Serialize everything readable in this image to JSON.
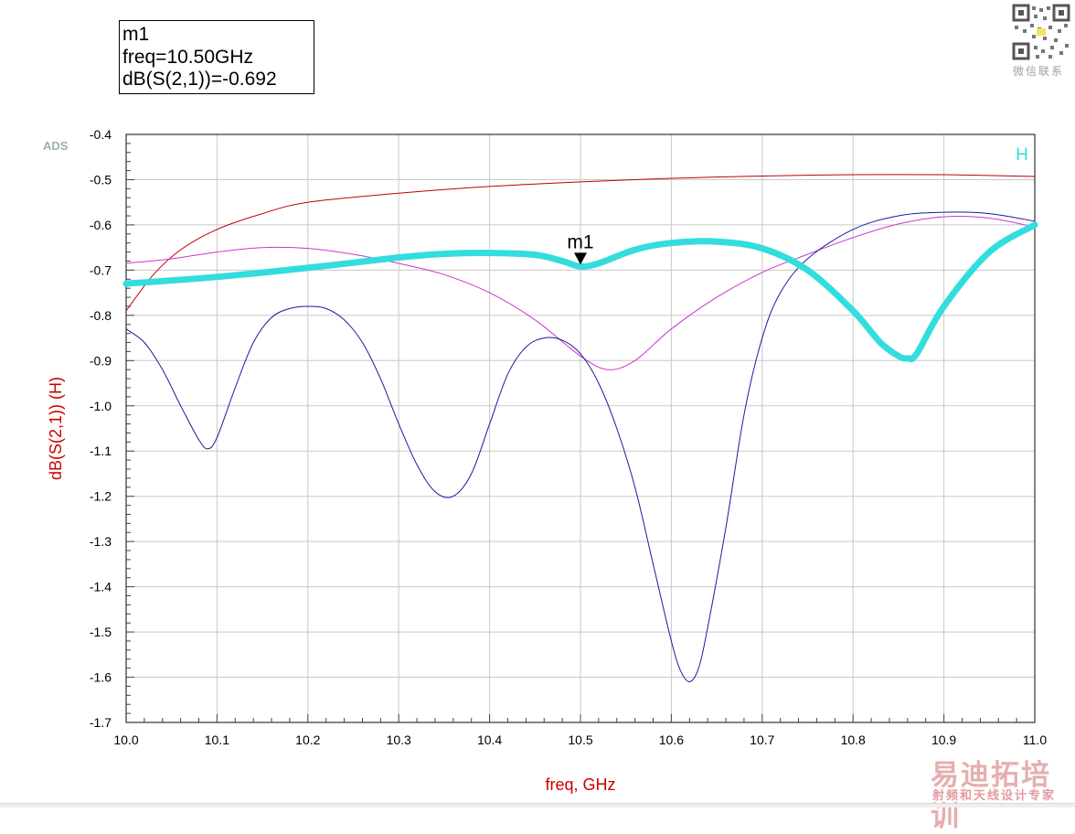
{
  "marker_readout": {
    "name": "m1",
    "freq": "freq=10.50GHz",
    "value": "dB(S(2,1))=-0.692"
  },
  "watermarks": {
    "ads": "ADS",
    "qr_caption": "微信联系",
    "brand": "易迪拓培训",
    "brand_sub": "射频和天线设计专家"
  },
  "chart_data": {
    "type": "line",
    "xlabel": "freq, GHz",
    "ylabel": "dB(S(2,1))  (H)",
    "xlim": [
      10.0,
      11.0
    ],
    "ylim": [
      -1.7,
      -0.4
    ],
    "x_ticks": [
      10.0,
      10.1,
      10.2,
      10.3,
      10.4,
      10.5,
      10.6,
      10.7,
      10.8,
      10.9,
      11.0
    ],
    "x_tick_labels": [
      "10.0",
      "10.1",
      "10.2",
      "10.3",
      "10.4",
      "10.5",
      "10.6",
      "10.7",
      "10.8",
      "10.9",
      "11.0"
    ],
    "y_ticks": [
      -0.4,
      -0.5,
      -0.6,
      -0.7,
      -0.8,
      -0.9,
      -1.0,
      -1.1,
      -1.2,
      -1.3,
      -1.4,
      -1.5,
      -1.6,
      -1.7
    ],
    "y_tick_labels": [
      "-0.4",
      "-0.5",
      "-0.6",
      "-0.7",
      "-0.8",
      "-0.9",
      "-1.0",
      "-1.1",
      "-1.2",
      "-1.3",
      "-1.4",
      "-1.5",
      "-1.6",
      "-1.7"
    ],
    "grid": true,
    "series": [
      {
        "color": "#c00000",
        "width": 1,
        "x": [
          10.0,
          10.03,
          10.06,
          10.1,
          10.15,
          10.2,
          10.3,
          10.4,
          10.5,
          10.6,
          10.7,
          10.8,
          10.9,
          11.0
        ],
        "y": [
          -0.79,
          -0.71,
          -0.655,
          -0.61,
          -0.575,
          -0.55,
          -0.53,
          -0.515,
          -0.505,
          -0.497,
          -0.492,
          -0.489,
          -0.489,
          -0.493
        ]
      },
      {
        "color": "#cc33cc",
        "width": 1,
        "x": [
          10.0,
          10.05,
          10.1,
          10.15,
          10.2,
          10.25,
          10.3,
          10.35,
          10.4,
          10.45,
          10.5,
          10.53,
          10.56,
          10.6,
          10.65,
          10.7,
          10.75,
          10.8,
          10.85,
          10.9,
          10.95,
          11.0
        ],
        "y": [
          -0.685,
          -0.675,
          -0.66,
          -0.65,
          -0.652,
          -0.665,
          -0.685,
          -0.71,
          -0.75,
          -0.81,
          -0.89,
          -0.92,
          -0.9,
          -0.83,
          -0.76,
          -0.705,
          -0.665,
          -0.628,
          -0.598,
          -0.582,
          -0.585,
          -0.605
        ]
      },
      {
        "color": "#1a1a9c",
        "width": 1,
        "x": [
          10.0,
          10.02,
          10.04,
          10.06,
          10.08,
          10.09,
          10.1,
          10.12,
          10.14,
          10.16,
          10.18,
          10.2,
          10.22,
          10.24,
          10.26,
          10.28,
          10.3,
          10.32,
          10.34,
          10.36,
          10.38,
          10.4,
          10.42,
          10.44,
          10.46,
          10.48,
          10.5,
          10.52,
          10.54,
          10.56,
          10.58,
          10.6,
          10.61,
          10.62,
          10.63,
          10.64,
          10.66,
          10.68,
          10.7,
          10.72,
          10.75,
          10.8,
          10.85,
          10.9,
          10.95,
          11.0
        ],
        "y": [
          -0.83,
          -0.86,
          -0.92,
          -1.0,
          -1.075,
          -1.095,
          -1.07,
          -0.96,
          -0.86,
          -0.805,
          -0.785,
          -0.78,
          -0.785,
          -0.81,
          -0.86,
          -0.94,
          -1.04,
          -1.13,
          -1.19,
          -1.2,
          -1.15,
          -1.04,
          -0.93,
          -0.87,
          -0.85,
          -0.855,
          -0.885,
          -0.95,
          -1.05,
          -1.18,
          -1.35,
          -1.52,
          -1.585,
          -1.61,
          -1.58,
          -1.49,
          -1.27,
          -1.02,
          -0.85,
          -0.75,
          -0.675,
          -0.61,
          -0.58,
          -0.572,
          -0.575,
          -0.592
        ]
      },
      {
        "name": "H",
        "color": "#33dddd",
        "width": 7,
        "x": [
          10.0,
          10.1,
          10.2,
          10.3,
          10.35,
          10.4,
          10.45,
          10.48,
          10.5,
          10.52,
          10.56,
          10.6,
          10.65,
          10.7,
          10.75,
          10.8,
          10.83,
          10.85,
          10.86,
          10.87,
          10.9,
          10.95,
          11.0
        ],
        "y": [
          -0.73,
          -0.715,
          -0.695,
          -0.672,
          -0.664,
          -0.662,
          -0.666,
          -0.68,
          -0.692,
          -0.685,
          -0.655,
          -0.64,
          -0.637,
          -0.652,
          -0.7,
          -0.79,
          -0.86,
          -0.89,
          -0.895,
          -0.885,
          -0.78,
          -0.66,
          -0.6
        ]
      }
    ],
    "legend": {
      "label": "H",
      "color": "#33dddd",
      "position": "top-right"
    },
    "markers": [
      {
        "label": "m1",
        "x": 10.5,
        "y": -0.692
      }
    ]
  }
}
